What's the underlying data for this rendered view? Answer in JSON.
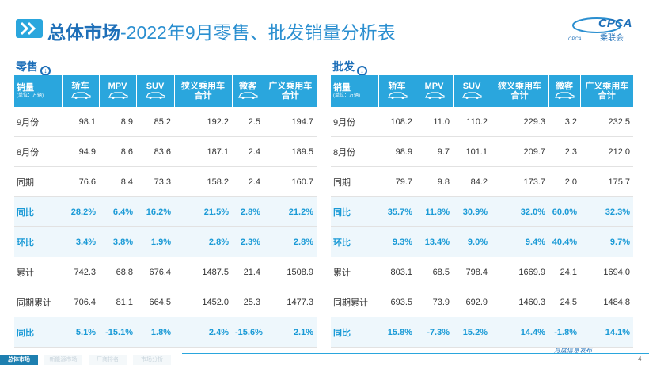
{
  "header": {
    "title_bold": "总体市场",
    "title_rest": "-2022年9月零售、批发销量分析表",
    "logo_text": "CPCA",
    "logo_sub": "乘联会",
    "logo_mark": "CPCA"
  },
  "tables": [
    {
      "title": "零售",
      "corner": {
        "label": "销量",
        "unit": "(单位：万辆)"
      },
      "columns": [
        [
          "轿车"
        ],
        [
          "MPV"
        ],
        [
          "SUV"
        ],
        [
          "狭义乘用车",
          "合计"
        ],
        [
          "微客"
        ],
        [
          "广义乘用车",
          "合计"
        ]
      ],
      "rows": [
        {
          "label": "9月份",
          "highlight": false,
          "cells": [
            "98.1",
            "8.9",
            "85.2",
            "192.2",
            "2.5",
            "194.7"
          ]
        },
        {
          "label": "8月份",
          "highlight": false,
          "cells": [
            "94.9",
            "8.6",
            "83.6",
            "187.1",
            "2.4",
            "189.5"
          ]
        },
        {
          "label": "同期",
          "highlight": false,
          "cells": [
            "76.6",
            "8.4",
            "73.3",
            "158.2",
            "2.4",
            "160.7"
          ]
        },
        {
          "label": "同比",
          "highlight": true,
          "cells": [
            "28.2%",
            "6.4%",
            "16.2%",
            "21.5%",
            "2.8%",
            "21.2%"
          ]
        },
        {
          "label": "环比",
          "highlight": true,
          "cells": [
            "3.4%",
            "3.8%",
            "1.9%",
            "2.8%",
            "2.3%",
            "2.8%"
          ]
        },
        {
          "label": "累计",
          "highlight": false,
          "cells": [
            "742.3",
            "68.8",
            "676.4",
            "1487.5",
            "21.4",
            "1508.9"
          ]
        },
        {
          "label": "同期累计",
          "highlight": false,
          "cells": [
            "706.4",
            "81.1",
            "664.5",
            "1452.0",
            "25.3",
            "1477.3"
          ]
        },
        {
          "label": "同比",
          "highlight": true,
          "cells": [
            "5.1%",
            "-15.1%",
            "1.8%",
            "2.4%",
            "-15.6%",
            "2.1%"
          ]
        }
      ]
    },
    {
      "title": "批发",
      "corner": {
        "label": "销量",
        "unit": "(单位：万辆)"
      },
      "columns": [
        [
          "轿车"
        ],
        [
          "MPV"
        ],
        [
          "SUV"
        ],
        [
          "狭义乘用车",
          "合计"
        ],
        [
          "微客"
        ],
        [
          "广义乘用车",
          "合计"
        ]
      ],
      "rows": [
        {
          "label": "9月份",
          "highlight": false,
          "cells": [
            "108.2",
            "11.0",
            "110.2",
            "229.3",
            "3.2",
            "232.5"
          ]
        },
        {
          "label": "8月份",
          "highlight": false,
          "cells": [
            "98.9",
            "9.7",
            "101.1",
            "209.7",
            "2.3",
            "212.0"
          ]
        },
        {
          "label": "同期",
          "highlight": false,
          "cells": [
            "79.7",
            "9.8",
            "84.2",
            "173.7",
            "2.0",
            "175.7"
          ]
        },
        {
          "label": "同比",
          "highlight": true,
          "cells": [
            "35.7%",
            "11.8%",
            "30.9%",
            "32.0%",
            "60.0%",
            "32.3%"
          ]
        },
        {
          "label": "环比",
          "highlight": true,
          "cells": [
            "9.3%",
            "13.4%",
            "9.0%",
            "9.4%",
            "40.4%",
            "9.7%"
          ]
        },
        {
          "label": "累计",
          "highlight": false,
          "cells": [
            "803.1",
            "68.5",
            "798.4",
            "1669.9",
            "24.1",
            "1694.0"
          ]
        },
        {
          "label": "同期累计",
          "highlight": false,
          "cells": [
            "693.5",
            "73.9",
            "692.9",
            "1460.3",
            "24.5",
            "1484.8"
          ]
        },
        {
          "label": "同比",
          "highlight": true,
          "cells": [
            "15.8%",
            "-7.3%",
            "15.2%",
            "14.4%",
            "-1.8%",
            "14.1%"
          ]
        }
      ]
    }
  ],
  "footer": {
    "tabs": [
      "总体市场",
      "新能源市场",
      "厂商排名",
      "市场分析"
    ],
    "brand": "月度信息发布",
    "page": "4"
  }
}
